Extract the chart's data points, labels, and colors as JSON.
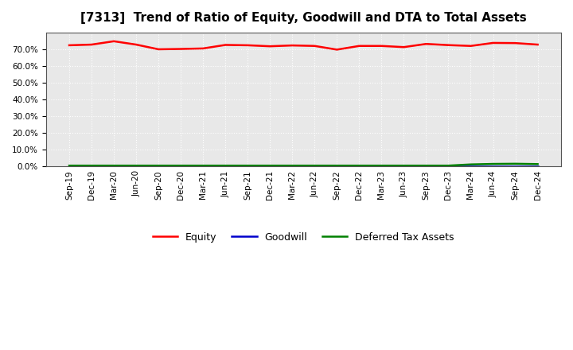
{
  "title": "[7313]  Trend of Ratio of Equity, Goodwill and DTA to Total Assets",
  "x_labels": [
    "Sep-19",
    "Dec-19",
    "Mar-20",
    "Jun-20",
    "Sep-20",
    "Dec-20",
    "Mar-21",
    "Jun-21",
    "Sep-21",
    "Dec-21",
    "Mar-22",
    "Jun-22",
    "Sep-22",
    "Dec-22",
    "Mar-23",
    "Jun-23",
    "Sep-23",
    "Dec-23",
    "Mar-24",
    "Jun-24",
    "Sep-24",
    "Dec-24"
  ],
  "equity": [
    0.724,
    0.728,
    0.748,
    0.728,
    0.7,
    0.702,
    0.705,
    0.726,
    0.724,
    0.718,
    0.723,
    0.72,
    0.698,
    0.72,
    0.72,
    0.713,
    0.732,
    0.725,
    0.72,
    0.738,
    0.737,
    0.728
  ],
  "goodwill": [
    0.0,
    0.0,
    0.0,
    0.0,
    0.0,
    0.0,
    0.0,
    0.0,
    0.0,
    0.0,
    0.0,
    0.0,
    0.0,
    0.0,
    0.0,
    0.0,
    0.0,
    0.0,
    0.0,
    0.0,
    0.0,
    0.0
  ],
  "dta": [
    0.006,
    0.006,
    0.006,
    0.006,
    0.006,
    0.006,
    0.006,
    0.006,
    0.006,
    0.006,
    0.006,
    0.006,
    0.006,
    0.006,
    0.006,
    0.006,
    0.006,
    0.006,
    0.013,
    0.016,
    0.017,
    0.015
  ],
  "equity_color": "#ff0000",
  "goodwill_color": "#0000cc",
  "dta_color": "#008000",
  "ylim": [
    0.0,
    0.8
  ],
  "yticks": [
    0.0,
    0.1,
    0.2,
    0.3,
    0.4,
    0.5,
    0.6,
    0.7
  ],
  "plot_bg_color": "#e8e8e8",
  "fig_bg_color": "#ffffff",
  "grid_color": "#ffffff",
  "title_fontsize": 11,
  "tick_fontsize": 7.5
}
